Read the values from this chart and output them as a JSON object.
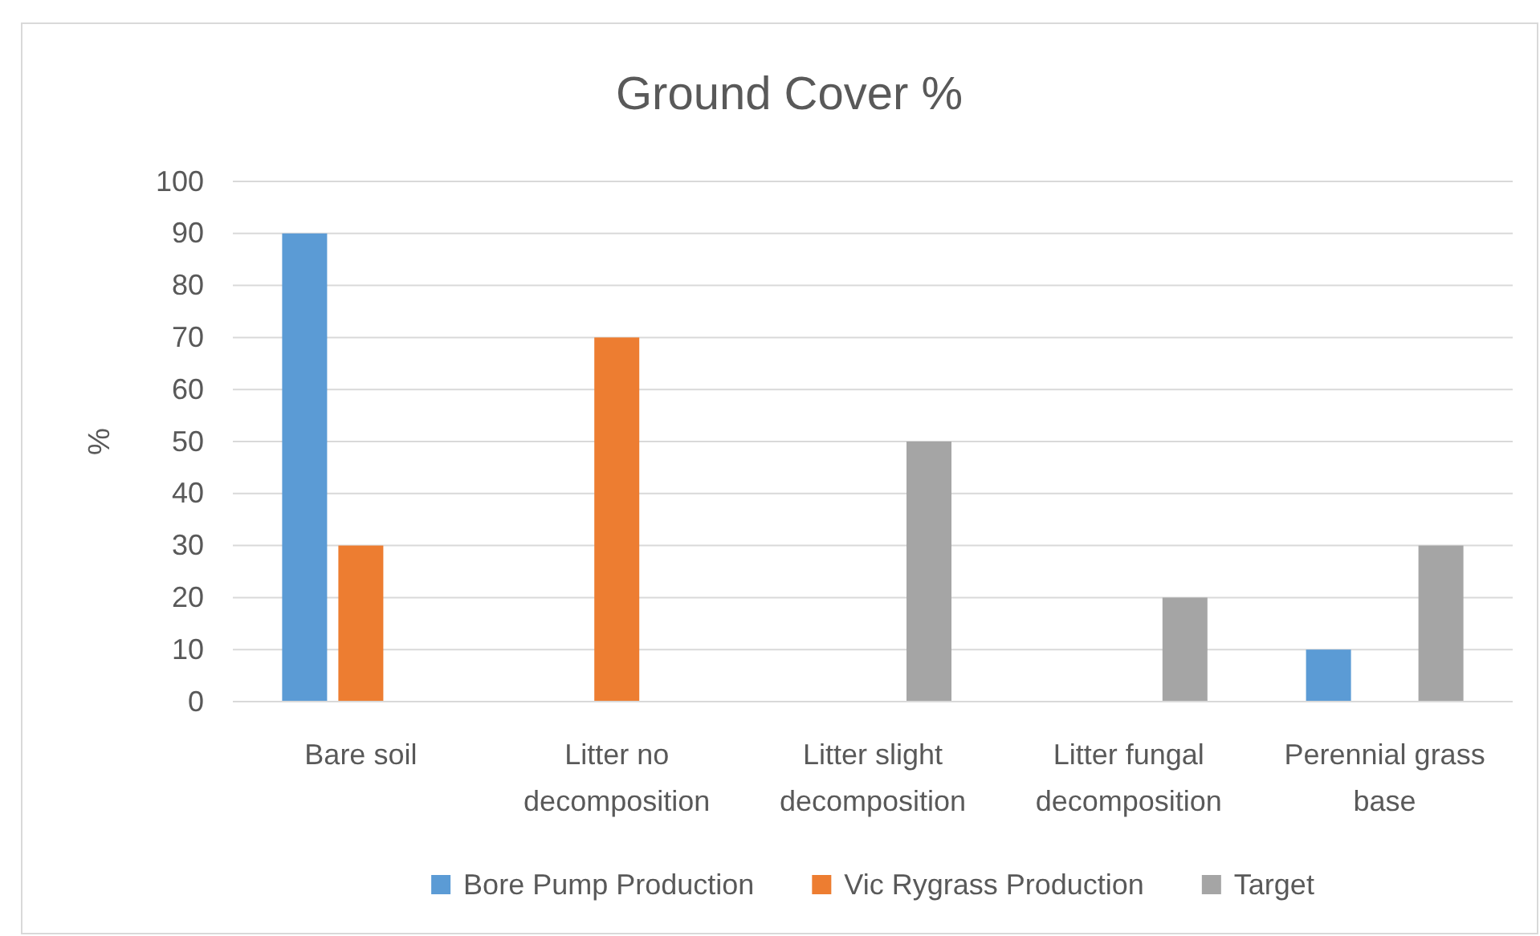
{
  "chart_data": {
    "type": "bar",
    "title": "Ground Cover %",
    "ylabel": "%",
    "categories": [
      "Bare soil",
      "Litter no decomposition",
      "Litter slight decomposition",
      "Litter fungal decomposition",
      "Perennial grass base"
    ],
    "series": [
      {
        "name": "Bore Pump Production",
        "color": "#5b9bd5",
        "values": [
          90,
          0,
          0,
          0,
          10
        ]
      },
      {
        "name": "Vic Rygrass Production",
        "color": "#ed7d31",
        "values": [
          30,
          70,
          0,
          0,
          0
        ]
      },
      {
        "name": "Target",
        "color": "#a5a5a5",
        "values": [
          0,
          0,
          50,
          20,
          30
        ]
      }
    ],
    "ylim": [
      0,
      100
    ],
    "yticks": [
      0,
      10,
      20,
      30,
      40,
      50,
      60,
      70,
      80,
      90,
      100
    ],
    "grid": "y",
    "legend": "bottom"
  }
}
